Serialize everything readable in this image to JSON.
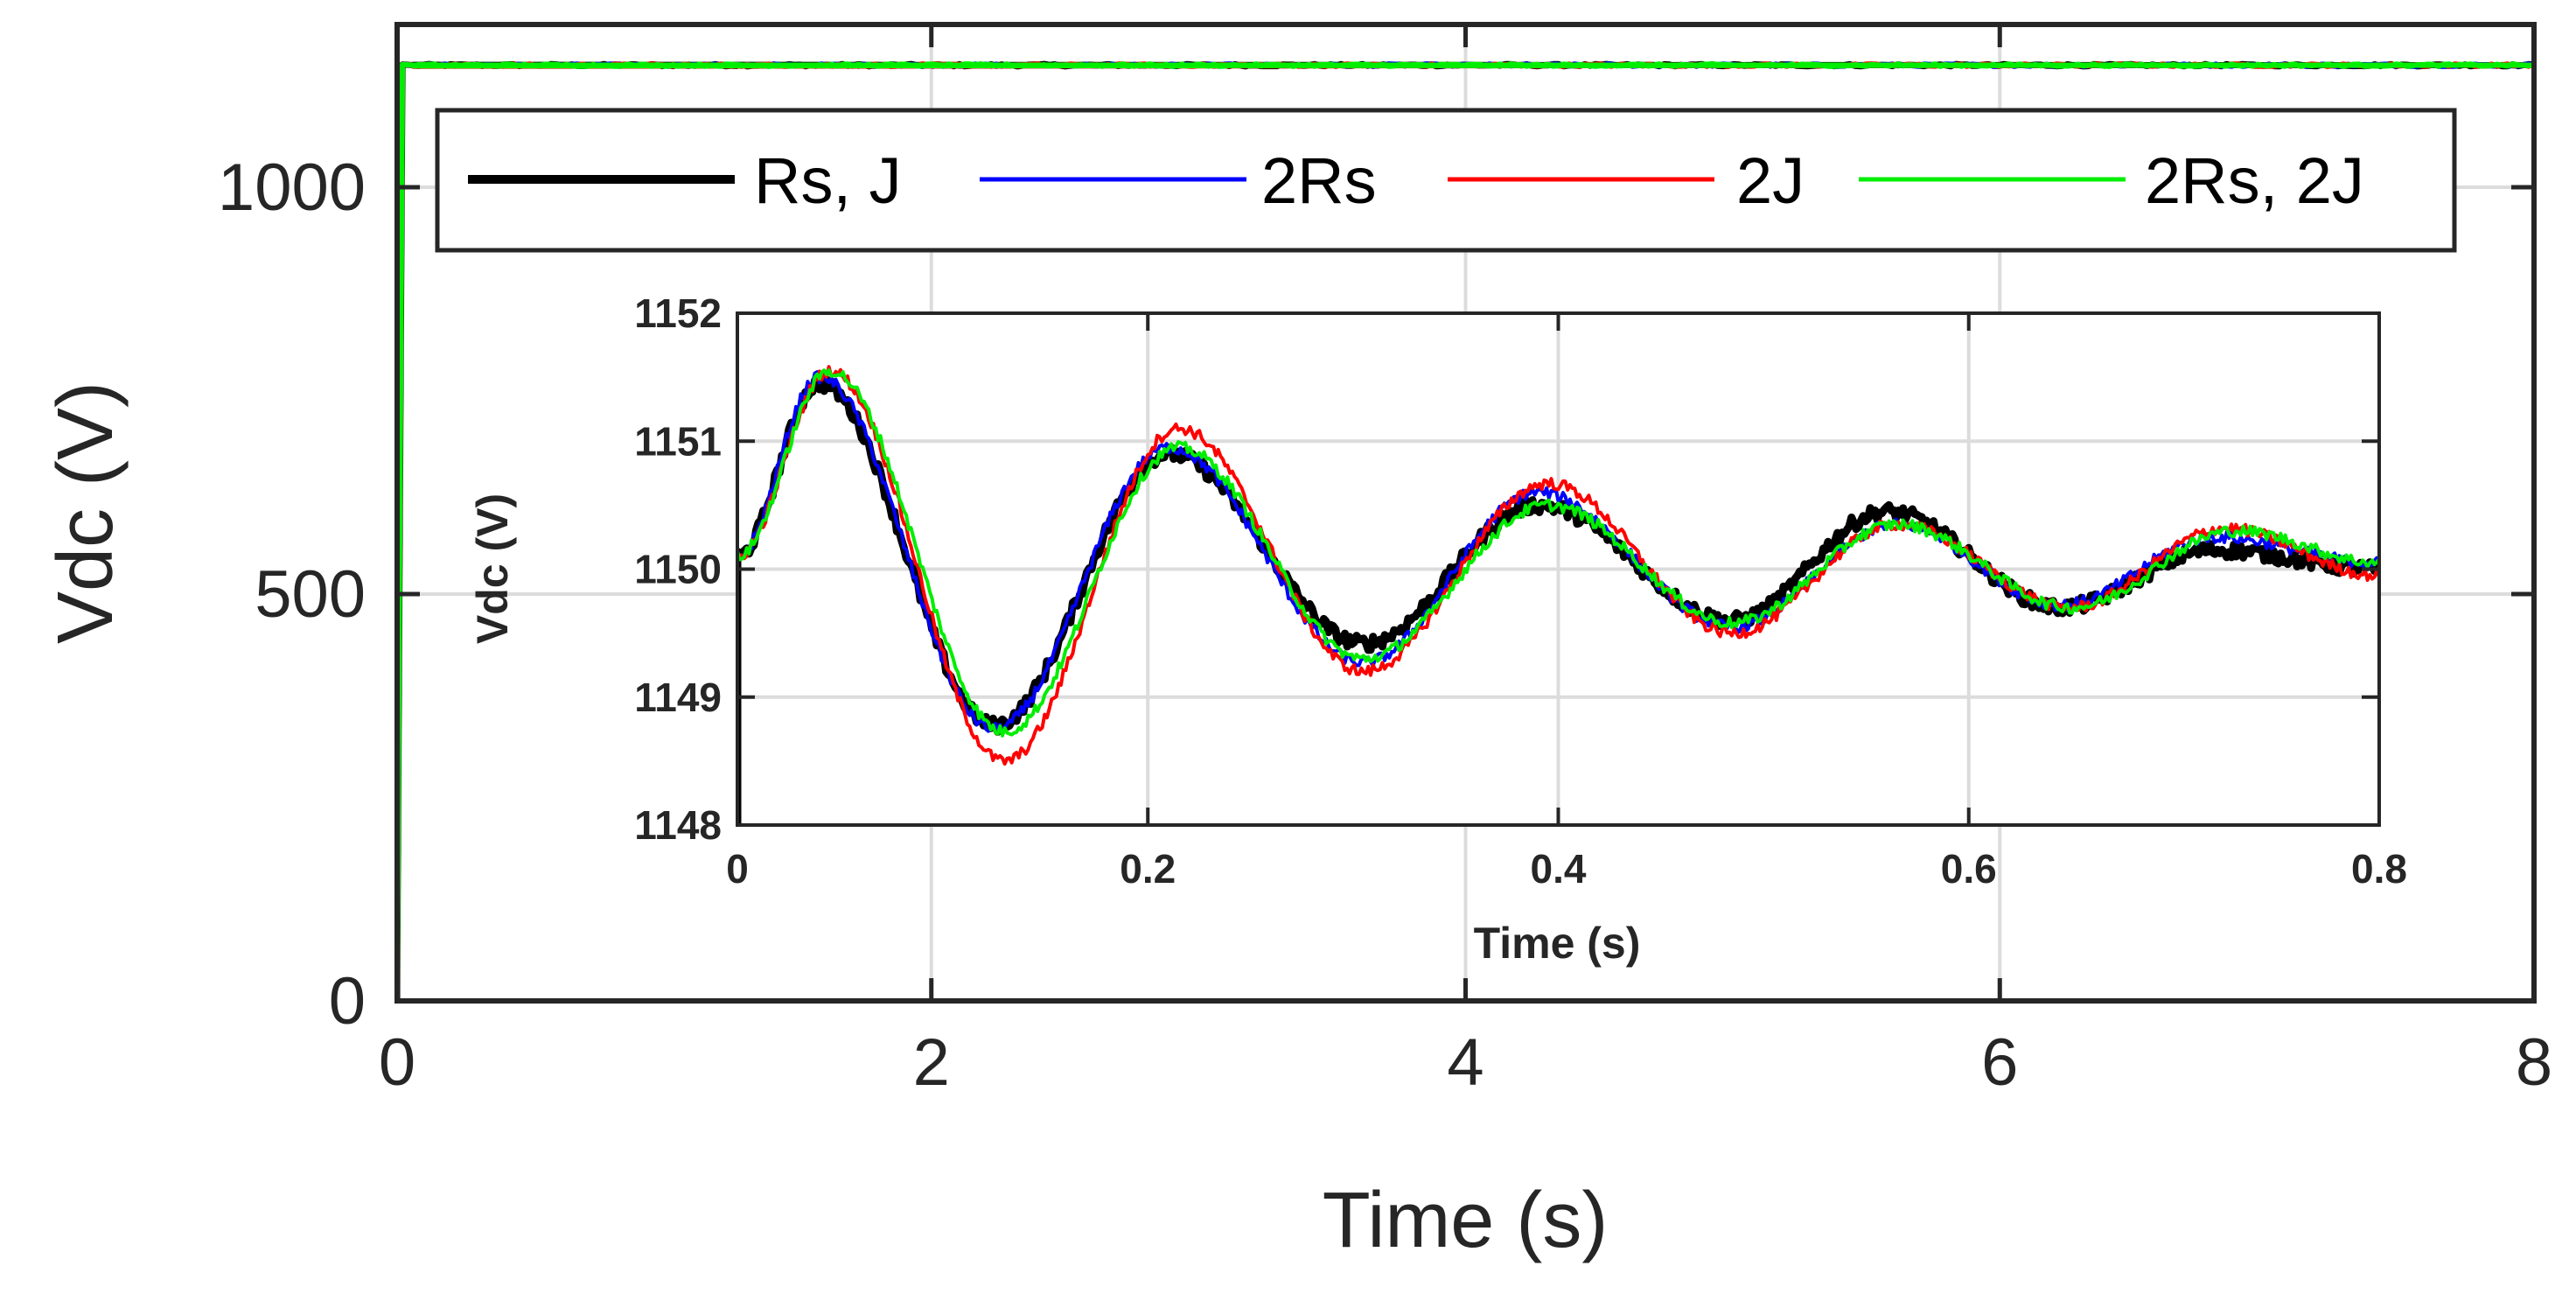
{
  "chart_data": [
    {
      "type": "line",
      "title": "",
      "xlabel": "Time (s)",
      "ylabel": "Vdc (V)",
      "xlim": [
        0,
        8
      ],
      "ylim": [
        0,
        1200
      ],
      "xticks": [
        0,
        2,
        4,
        6,
        8
      ],
      "xtick_labels": [
        "0",
        "2",
        "4",
        "6",
        "8"
      ],
      "yticks": [
        0,
        500,
        1000
      ],
      "ytick_labels": [
        "0",
        "500",
        "1000"
      ],
      "grid": true,
      "legend_position": "top",
      "series": [
        {
          "name": "Rs, J",
          "color": "#000000",
          "x": [
            0,
            0.02,
            0.06,
            8
          ],
          "y": [
            0,
            1151,
            1150,
            1150
          ]
        },
        {
          "name": "2Rs",
          "color": "#0000ff",
          "x": [
            0,
            0.02,
            0.06,
            8
          ],
          "y": [
            0,
            1151,
            1150,
            1150
          ]
        },
        {
          "name": "2J",
          "color": "#ff0000",
          "x": [
            0,
            0.02,
            0.06,
            8
          ],
          "y": [
            0,
            1151,
            1150,
            1150
          ]
        },
        {
          "name": "2Rs, 2J",
          "color": "#00ee00",
          "x": [
            0,
            0.02,
            0.06,
            8
          ],
          "y": [
            0,
            1151,
            1150,
            1150
          ]
        }
      ]
    },
    {
      "type": "line",
      "title": "",
      "xlabel": "Time (s)",
      "ylabel": "Vdc (V)",
      "xlim": [
        0,
        0.8
      ],
      "ylim": [
        1148,
        1152
      ],
      "xticks": [
        0,
        0.2,
        0.4,
        0.6,
        0.8
      ],
      "xtick_labels": [
        "0",
        "0.2",
        "0.4",
        "0.6",
        "0.8"
      ],
      "yticks": [
        1148,
        1149,
        1150,
        1151,
        1152
      ],
      "ytick_labels": [
        "1148",
        "1149",
        "1150",
        "1151",
        "1152"
      ],
      "grid": true,
      "legend_position": "none",
      "series": [
        {
          "name": "Rs, J",
          "color": "#000000",
          "x": [
            0,
            0.04,
            0.125,
            0.21,
            0.305,
            0.39,
            0.485,
            0.56,
            0.645,
            0.72,
            0.8
          ],
          "y": [
            1150.1,
            1151.45,
            1148.78,
            1150.9,
            1149.42,
            1150.5,
            1149.6,
            1150.45,
            1149.7,
            1150.15,
            1150.0
          ]
        },
        {
          "name": "2Rs",
          "color": "#0000ff",
          "x": [
            0,
            0.04,
            0.125,
            0.21,
            0.305,
            0.39,
            0.485,
            0.565,
            0.645,
            0.72,
            0.8
          ],
          "y": [
            1150.1,
            1151.5,
            1148.75,
            1150.95,
            1149.27,
            1150.6,
            1149.55,
            1150.35,
            1149.72,
            1150.25,
            1150.05
          ]
        },
        {
          "name": "2J",
          "color": "#ff0000",
          "x": [
            0,
            0.045,
            0.13,
            0.215,
            0.305,
            0.395,
            0.485,
            0.565,
            0.65,
            0.725,
            0.8
          ],
          "y": [
            1150.1,
            1151.55,
            1148.5,
            1151.1,
            1149.2,
            1150.67,
            1149.5,
            1150.35,
            1149.7,
            1150.32,
            1149.95
          ]
        },
        {
          "name": "2Rs, 2J",
          "color": "#00ee00",
          "x": [
            0,
            0.045,
            0.13,
            0.215,
            0.305,
            0.395,
            0.485,
            0.565,
            0.65,
            0.73,
            0.8
          ],
          "y": [
            1150.1,
            1151.55,
            1148.73,
            1150.95,
            1149.3,
            1150.5,
            1149.58,
            1150.35,
            1149.7,
            1150.3,
            1150.05
          ]
        }
      ]
    }
  ]
}
